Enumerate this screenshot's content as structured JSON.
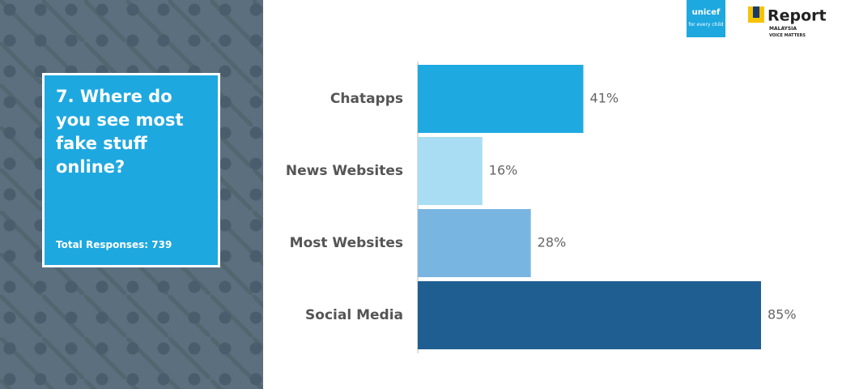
{
  "chart_data": {
    "type": "bar",
    "orientation": "horizontal",
    "title": "7. Where do you see most fake stuff online?",
    "subtitle": "Total Responses: 739",
    "categories": [
      "Chatapps",
      "News Websites",
      "Most Websites",
      "Social Media"
    ],
    "values": [
      41,
      16,
      28,
      85
    ],
    "value_labels": [
      "41%",
      "16%",
      "28%",
      "85%"
    ],
    "colors": [
      "#1fa9e1",
      "#a9ddf3",
      "#79b5e1",
      "#1f5e91"
    ]
  },
  "logos": {
    "unicef": "unicef",
    "unicef_tagline": "for every child",
    "ureport": "Report",
    "country": "MALAYSIA",
    "tagline": "VOICE MATTERS"
  }
}
